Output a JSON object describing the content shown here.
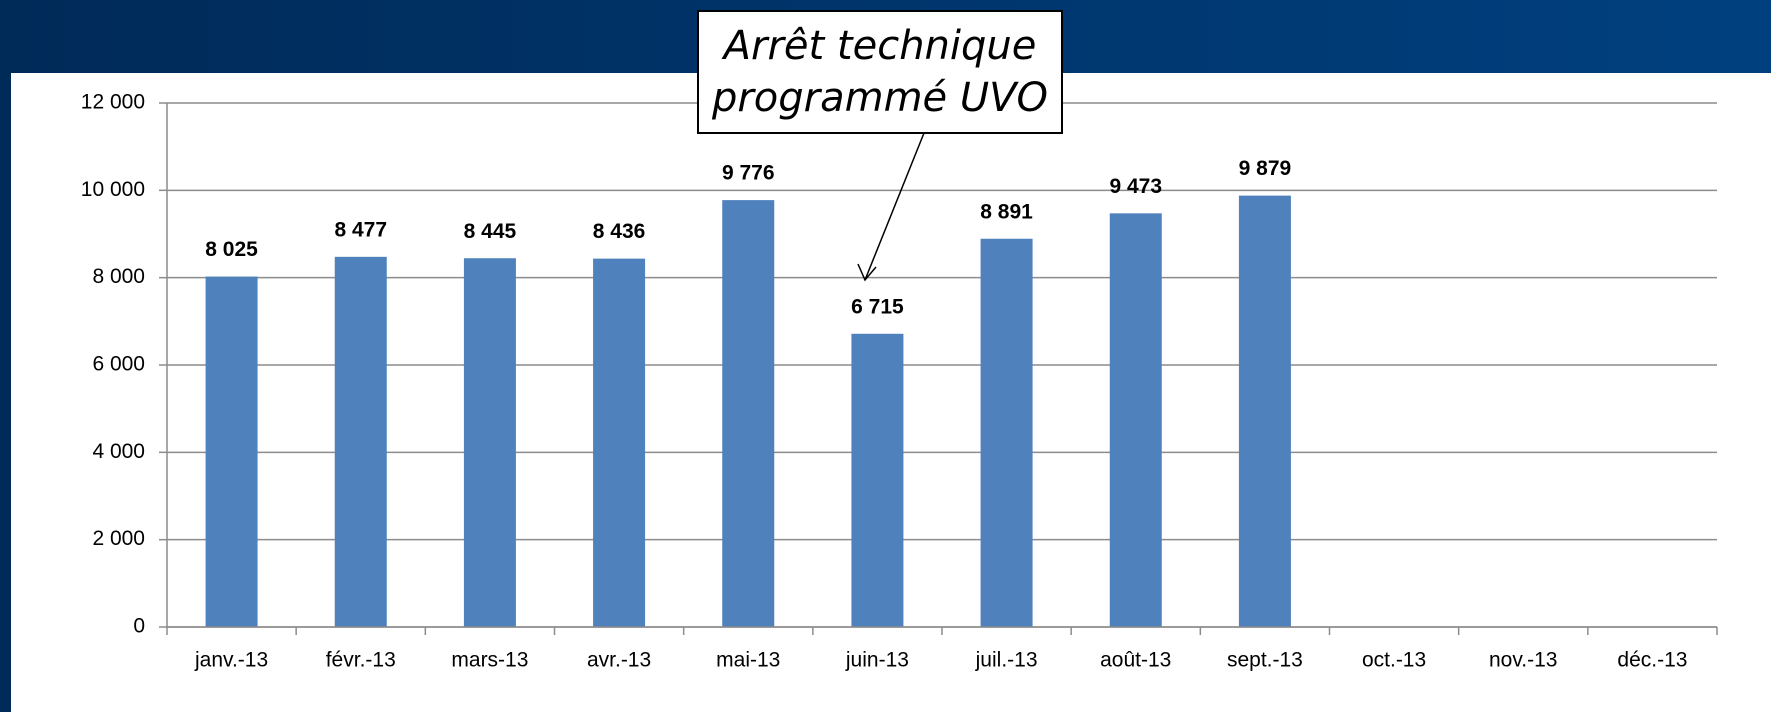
{
  "chart_data": {
    "type": "bar",
    "annotation": [
      "Arrêt technique",
      "programmé UVO"
    ],
    "categories": [
      "janv.-13",
      "févr.-13",
      "mars-13",
      "avr.-13",
      "mai-13",
      "juin-13",
      "juil.-13",
      "août-13",
      "sept.-13",
      "oct.-13",
      "nov.-13",
      "déc.-13"
    ],
    "values": [
      8025,
      8477,
      8445,
      8436,
      9776,
      6715,
      8891,
      9473,
      9879,
      null,
      null,
      null
    ],
    "value_labels": [
      "8 025",
      "8 477",
      "8 445",
      "8 436",
      "9 776",
      "6 715",
      "8 891",
      "9 473",
      "9 879",
      null,
      null,
      null
    ],
    "color": "#4f81bd",
    "ylim": [
      0,
      12000
    ],
    "yticks": [
      0,
      {
        "value": 2000,
        "label": "2 000"
      },
      {
        "value": 4000,
        "label": "4 000"
      },
      {
        "value": 6000,
        "label": "6 000"
      },
      {
        "value": 8000,
        "label": "8 000"
      },
      {
        "value": 10000,
        "label": "10 000"
      },
      {
        "value": 12000,
        "label": "12 000"
      }
    ],
    "grid": true
  }
}
